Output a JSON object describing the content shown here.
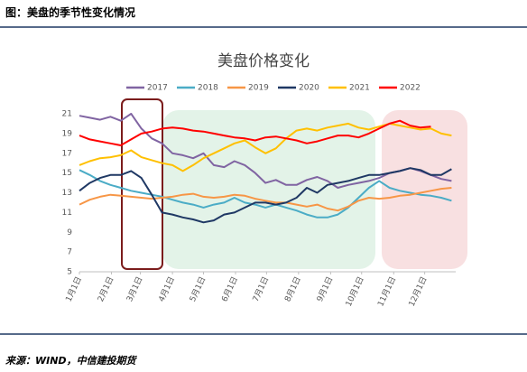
{
  "header": {
    "title": "图：美盘的季节性变化情况"
  },
  "footer": {
    "source": "来源：WIND，中信建投期货"
  },
  "chart_data": {
    "type": "line",
    "title": "美盘价格变化",
    "x": [
      1,
      11,
      21,
      31,
      41,
      51,
      61,
      71,
      81,
      91,
      101,
      111,
      121,
      131,
      141,
      151,
      161,
      171,
      181,
      191,
      201,
      211,
      221,
      231,
      241,
      251,
      261,
      271,
      281,
      291,
      301,
      311,
      321,
      331,
      341,
      351,
      361
    ],
    "xlim": [
      1,
      365
    ],
    "xticks": [
      {
        "value": 1,
        "label": "1月1日"
      },
      {
        "value": 32,
        "label": "2月1日"
      },
      {
        "value": 60,
        "label": "3月1日"
      },
      {
        "value": 91,
        "label": "4月1日"
      },
      {
        "value": 121,
        "label": "5月1日"
      },
      {
        "value": 152,
        "label": "6月1日"
      },
      {
        "value": 182,
        "label": "7月1日"
      },
      {
        "value": 213,
        "label": "8月1日"
      },
      {
        "value": 244,
        "label": "9月1日"
      },
      {
        "value": 274,
        "label": "10月1日"
      },
      {
        "value": 305,
        "label": "11月1日"
      },
      {
        "value": 335,
        "label": "12月1日"
      }
    ],
    "ylim": [
      5,
      21
    ],
    "yticks": [
      5,
      7,
      9,
      11,
      13,
      15,
      17,
      19,
      21
    ],
    "grid": false,
    "series": [
      {
        "name": "2017",
        "color": "#8064a2",
        "values": [
          20.8,
          20.6,
          20.4,
          20.7,
          20.3,
          21.0,
          19.5,
          18.5,
          18.0,
          17.0,
          16.8,
          16.5,
          17.0,
          15.8,
          15.6,
          16.2,
          15.8,
          15.0,
          14.0,
          14.3,
          13.8,
          13.8,
          14.3,
          14.6,
          14.2,
          13.5,
          13.8,
          14.0,
          14.2,
          14.5,
          15.0,
          15.2,
          15.5,
          15.2,
          14.8,
          14.4,
          14.2
        ]
      },
      {
        "name": "2018",
        "color": "#4bacc6",
        "values": [
          15.3,
          14.8,
          14.2,
          13.8,
          13.5,
          13.2,
          13.0,
          12.8,
          12.6,
          12.3,
          12.0,
          11.8,
          11.5,
          11.8,
          12.0,
          12.5,
          12.0,
          11.8,
          11.5,
          11.8,
          11.5,
          11.2,
          10.8,
          10.5,
          10.5,
          10.8,
          11.5,
          12.5,
          13.5,
          14.2,
          13.5,
          13.2,
          13.0,
          12.8,
          12.7,
          12.5,
          12.2
        ]
      },
      {
        "name": "2019",
        "color": "#f79646",
        "values": [
          11.8,
          12.3,
          12.6,
          12.8,
          12.7,
          12.6,
          12.5,
          12.4,
          12.5,
          12.6,
          12.8,
          12.9,
          12.6,
          12.5,
          12.6,
          12.8,
          12.7,
          12.4,
          12.2,
          12.0,
          12.0,
          11.8,
          11.6,
          11.8,
          11.4,
          11.2,
          11.6,
          12.2,
          12.5,
          12.4,
          12.5,
          12.7,
          12.8,
          13.0,
          13.2,
          13.4,
          13.5
        ]
      },
      {
        "name": "2020",
        "color": "#1f3864",
        "values": [
          13.2,
          14.0,
          14.5,
          14.8,
          14.8,
          15.2,
          14.5,
          12.8,
          11.0,
          10.8,
          10.5,
          10.3,
          10.0,
          10.2,
          10.8,
          11.0,
          11.5,
          12.0,
          12.0,
          11.8,
          12.0,
          12.5,
          13.5,
          13.0,
          13.8,
          14.0,
          14.2,
          14.5,
          14.8,
          14.8,
          15.0,
          15.2,
          15.5,
          15.3,
          14.8,
          14.8,
          15.4
        ]
      },
      {
        "name": "2021",
        "color": "#ffc000",
        "values": [
          15.8,
          16.2,
          16.5,
          16.6,
          16.8,
          17.3,
          16.6,
          16.3,
          16.0,
          15.8,
          15.2,
          15.8,
          16.5,
          17.0,
          17.5,
          18.0,
          18.3,
          17.6,
          17.0,
          17.5,
          18.5,
          19.3,
          19.5,
          19.3,
          19.6,
          19.8,
          20.0,
          19.6,
          19.4,
          19.7,
          20.0,
          19.8,
          19.6,
          19.4,
          19.5,
          19.0,
          18.8
        ]
      },
      {
        "name": "2022",
        "color": "#ff0000",
        "values": [
          18.8,
          18.4,
          18.2,
          18.0,
          17.8,
          18.4,
          19.0,
          19.2,
          19.5,
          19.6,
          19.5,
          19.3,
          19.2,
          19.0,
          18.8,
          18.6,
          18.5,
          18.3,
          18.6,
          18.7,
          18.5,
          18.3,
          18.0,
          18.2,
          18.5,
          18.8,
          18.8,
          18.6,
          19.0,
          19.5,
          20.0,
          20.3,
          19.8,
          19.6,
          19.7,
          null,
          null
        ]
      }
    ]
  }
}
